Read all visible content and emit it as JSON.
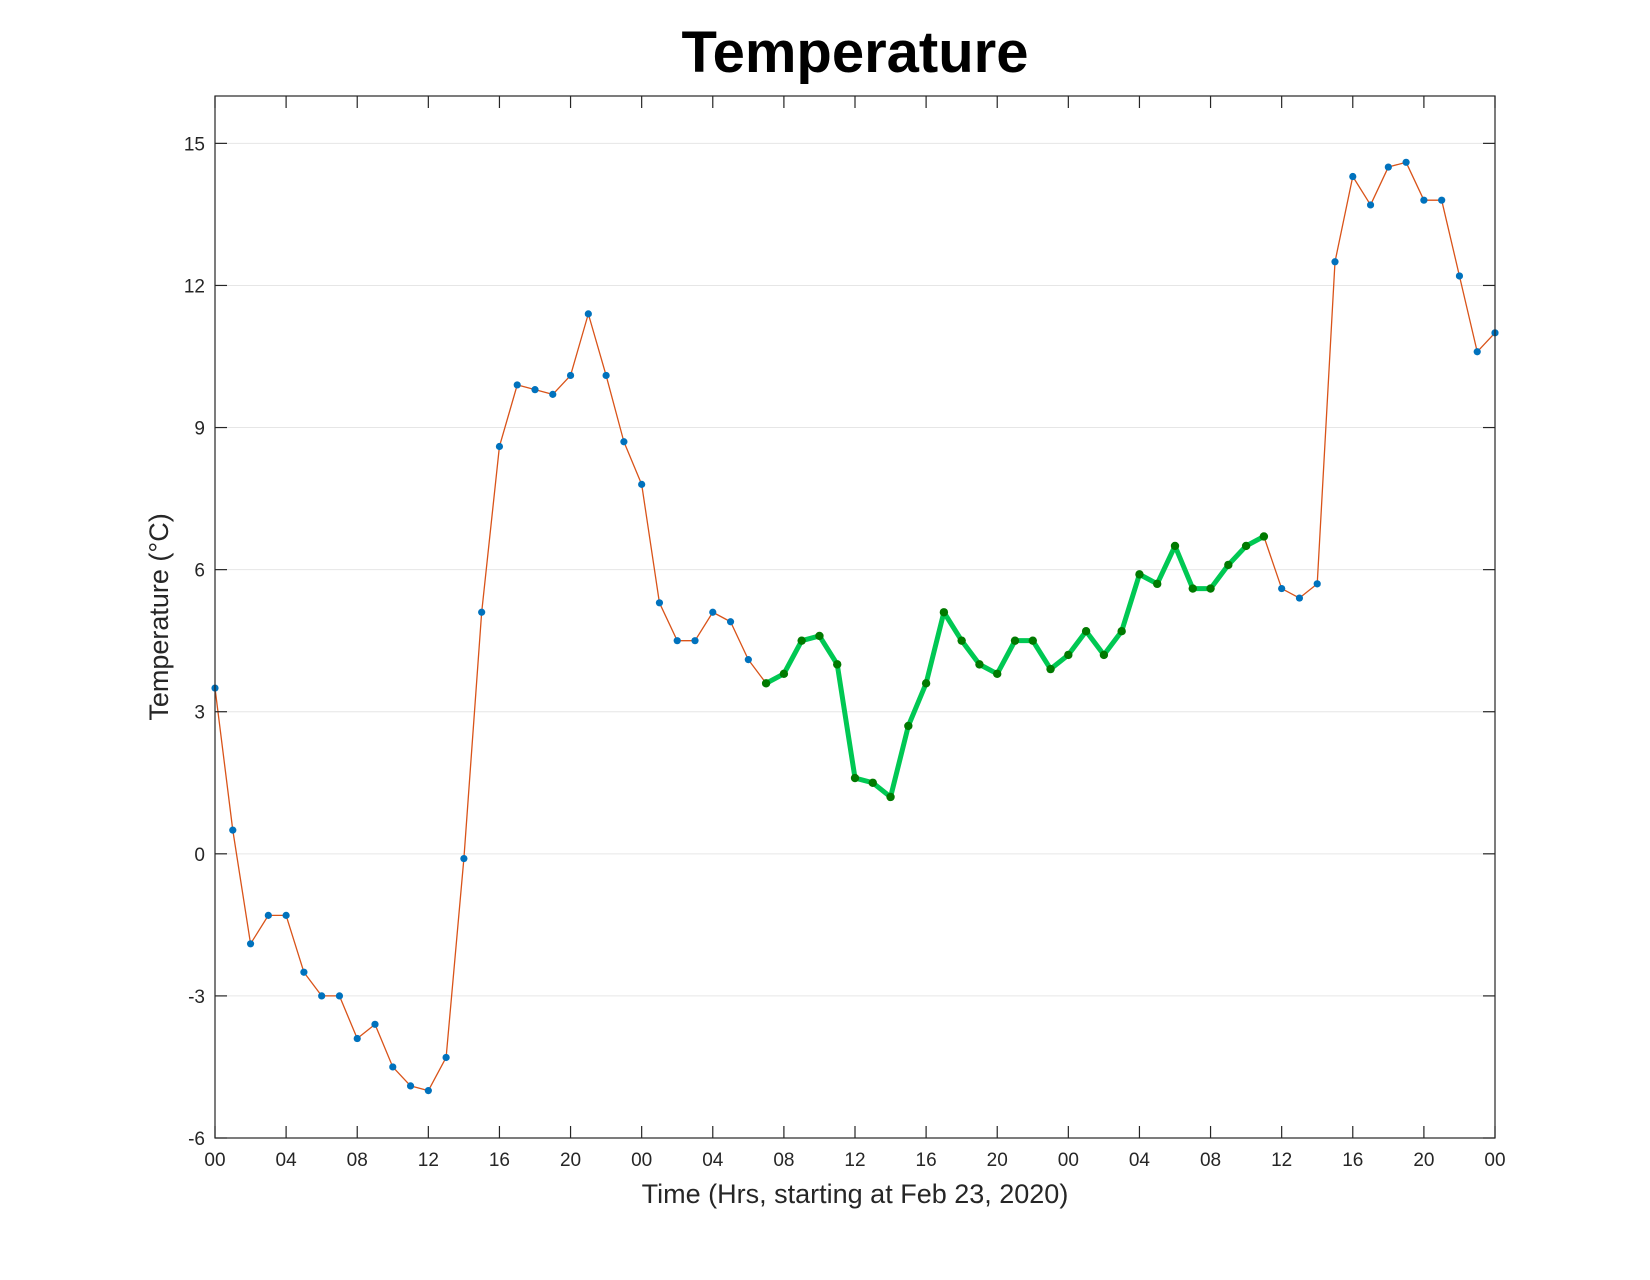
{
  "chart_data": {
    "type": "line",
    "title": "Temperature",
    "xlabel": "Time (Hrs, starting at Feb 23, 2020)",
    "ylabel": "Temperature (°C)",
    "xlim": [
      0,
      72
    ],
    "ylim": [
      -6,
      16
    ],
    "yticks": [
      -6,
      -3,
      0,
      3,
      6,
      9,
      12,
      15
    ],
    "xticks": [
      0,
      4,
      8,
      12,
      16,
      20,
      24,
      28,
      32,
      36,
      40,
      44,
      48,
      52,
      56,
      60,
      64,
      68,
      72
    ],
    "xtick_labels": [
      "00",
      "04",
      "08",
      "12",
      "16",
      "20",
      "00",
      "04",
      "08",
      "12",
      "16",
      "20",
      "00",
      "04",
      "08",
      "12",
      "16",
      "20",
      "00"
    ],
    "grid": true,
    "series": [
      {
        "color": "#d95319",
        "marker_color": "#0072bd",
        "x": [
          0,
          1,
          2,
          3,
          4,
          5,
          6,
          7,
          8,
          9,
          10,
          11,
          12,
          13,
          14,
          15,
          16,
          17,
          18,
          19,
          20,
          21,
          22,
          23,
          24,
          25,
          26,
          27,
          28,
          29,
          30,
          31,
          32,
          33,
          34,
          35,
          36,
          37,
          38,
          39,
          40,
          41,
          42,
          43,
          44,
          45,
          46,
          47,
          48,
          49,
          50,
          51,
          52,
          53,
          54,
          55,
          56,
          57,
          58,
          59,
          60,
          61,
          62,
          63,
          64,
          65,
          66,
          67,
          68,
          69,
          70,
          71,
          72
        ],
        "y": [
          3.5,
          0.5,
          -1.9,
          -1.3,
          -1.3,
          -2.5,
          -3.0,
          -3.0,
          -3.9,
          -3.6,
          -4.5,
          -4.9,
          -5.0,
          -4.3,
          -0.1,
          5.1,
          8.6,
          9.9,
          9.8,
          9.7,
          10.1,
          11.4,
          10.1,
          8.7,
          7.8,
          5.3,
          4.5,
          4.5,
          5.1,
          4.9,
          4.1,
          3.6,
          3.8,
          4.5,
          4.6,
          4.0,
          1.6,
          1.5,
          1.2,
          2.7,
          3.6,
          5.1,
          4.5,
          4.0,
          3.8,
          4.5,
          4.5,
          3.9,
          4.2,
          4.7,
          4.2,
          4.7,
          5.9,
          5.7,
          6.5,
          5.6,
          5.6,
          6.1,
          6.5,
          6.7,
          5.6,
          5.4,
          5.7,
          12.5,
          14.3,
          13.7,
          14.5,
          14.6,
          13.8,
          13.8,
          12.2,
          10.6,
          11.0
        ]
      },
      {
        "color": "#00c853",
        "marker_color": "#007a00",
        "x": [
          31,
          32,
          33,
          34,
          35,
          36,
          37,
          38,
          39,
          40,
          41,
          42,
          43,
          44,
          45,
          46,
          47,
          48,
          49,
          50,
          51,
          52,
          53,
          54,
          55,
          56,
          57,
          58,
          59
        ],
        "y": [
          3.6,
          3.8,
          4.5,
          4.6,
          4.0,
          1.6,
          1.5,
          1.2,
          2.7,
          3.6,
          5.1,
          4.5,
          4.0,
          3.8,
          4.5,
          4.5,
          3.9,
          4.2,
          4.7,
          4.2,
          4.7,
          5.9,
          5.7,
          6.5,
          5.6,
          5.6,
          6.1,
          6.5,
          6.7
        ]
      }
    ]
  }
}
